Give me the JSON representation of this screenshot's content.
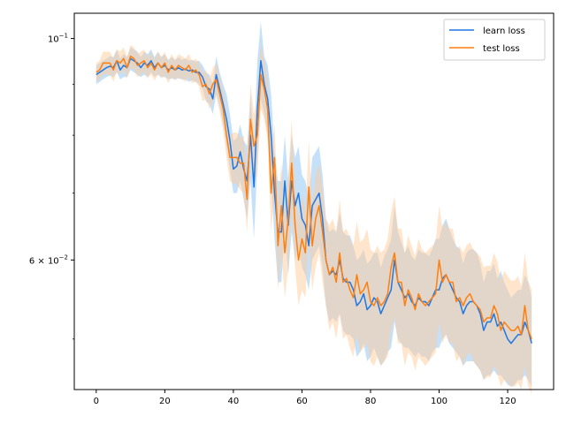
{
  "chart_data": {
    "type": "line",
    "title": "",
    "xlabel": "",
    "ylabel": "",
    "y_scale": "log",
    "xlim": [
      -6.4,
      133.4
    ],
    "ylim": [
      0.0445,
      0.106
    ],
    "grid": false,
    "legend_position": "upper right",
    "x_ticks": [
      0,
      20,
      40,
      60,
      80,
      100,
      120
    ],
    "x_tick_labels": [
      "0",
      "20",
      "40",
      "60",
      "80",
      "100",
      "120"
    ],
    "y_ticks": [
      {
        "value": 0.1,
        "base": "10",
        "exponent": "−1",
        "coefficient": ""
      },
      {
        "value": 0.06,
        "base": "10",
        "exponent": "−2",
        "coefficient": "6 × "
      }
    ],
    "series": [
      {
        "name": "learn loss",
        "color": "#1f77e4",
        "band_color": "#9fcdf7",
        "x_start": 0,
        "x_step": 1,
        "values": [
          0.092,
          0.0925,
          0.093,
          0.0935,
          0.0938,
          0.0935,
          0.095,
          0.093,
          0.094,
          0.0935,
          0.0955,
          0.095,
          0.0945,
          0.0935,
          0.0945,
          0.094,
          0.095,
          0.0935,
          0.0945,
          0.0935,
          0.094,
          0.093,
          0.0935,
          0.093,
          0.0935,
          0.093,
          0.0932,
          0.0928,
          0.093,
          0.0925,
          0.0925,
          0.0915,
          0.0895,
          0.089,
          0.087,
          0.092,
          0.089,
          0.086,
          0.083,
          0.079,
          0.074,
          0.0745,
          0.077,
          0.074,
          0.072,
          0.08,
          0.071,
          0.085,
          0.095,
          0.09,
          0.087,
          0.08,
          0.07,
          0.064,
          0.064,
          0.072,
          0.065,
          0.072,
          0.068,
          0.07,
          0.066,
          0.065,
          0.062,
          0.068,
          0.069,
          0.07,
          0.066,
          0.06,
          0.058,
          0.0585,
          0.058,
          0.06,
          0.0575,
          0.057,
          0.057,
          0.056,
          0.054,
          0.0545,
          0.0555,
          0.0535,
          0.054,
          0.055,
          0.0545,
          0.053,
          0.054,
          0.055,
          0.056,
          0.06,
          0.057,
          0.056,
          0.055,
          0.0555,
          0.0545,
          0.054,
          0.055,
          0.0545,
          0.0545,
          0.054,
          0.055,
          0.056,
          0.056,
          0.0575,
          0.058,
          0.057,
          0.056,
          0.055,
          0.0545,
          0.053,
          0.054,
          0.0545,
          0.0545,
          0.054,
          0.053,
          0.051,
          0.052,
          0.052,
          0.053,
          0.0515,
          0.052,
          0.051,
          0.05,
          0.0495,
          0.05,
          0.0505,
          0.0505,
          0.052,
          0.051,
          0.0495
        ],
        "band_lower": [
          0.09,
          0.0905,
          0.091,
          0.0915,
          0.0918,
          0.0915,
          0.0925,
          0.091,
          0.0915,
          0.0915,
          0.093,
          0.0925,
          0.092,
          0.0915,
          0.092,
          0.0915,
          0.0925,
          0.0915,
          0.092,
          0.0915,
          0.0915,
          0.091,
          0.0912,
          0.091,
          0.0912,
          0.091,
          0.091,
          0.0905,
          0.0908,
          0.0905,
          0.09,
          0.089,
          0.0865,
          0.086,
          0.084,
          0.088,
          0.0855,
          0.082,
          0.078,
          0.074,
          0.07,
          0.07,
          0.072,
          0.069,
          0.066,
          0.072,
          0.063,
          0.075,
          0.087,
          0.084,
          0.08,
          0.072,
          0.063,
          0.057,
          0.057,
          0.064,
          0.058,
          0.064,
          0.06,
          0.062,
          0.059,
          0.058,
          0.056,
          0.06,
          0.061,
          0.062,
          0.059,
          0.054,
          0.052,
          0.0525,
          0.052,
          0.053,
          0.051,
          0.0505,
          0.0505,
          0.05,
          0.048,
          0.0485,
          0.0495,
          0.0475,
          0.048,
          0.049,
          0.048,
          0.047,
          0.0475,
          0.0485,
          0.049,
          0.052,
          0.05,
          0.0495,
          0.049,
          0.049,
          0.0485,
          0.048,
          0.0485,
          0.048,
          0.048,
          0.0475,
          0.0485,
          0.049,
          0.049,
          0.05,
          0.0505,
          0.0495,
          0.049,
          0.0485,
          0.048,
          0.047,
          0.0475,
          0.0475,
          0.0475,
          0.047,
          0.0465,
          0.0455,
          0.046,
          0.046,
          0.0465,
          0.046,
          0.046,
          0.0455,
          0.045,
          0.0448,
          0.045,
          0.0455,
          0.0455,
          0.046,
          0.0455,
          0.0448
        ],
        "band_upper": [
          0.094,
          0.0945,
          0.095,
          0.0955,
          0.096,
          0.0958,
          0.0975,
          0.0955,
          0.0965,
          0.0958,
          0.098,
          0.0975,
          0.097,
          0.0958,
          0.097,
          0.0965,
          0.0975,
          0.0958,
          0.097,
          0.0958,
          0.0965,
          0.0952,
          0.0958,
          0.0952,
          0.0958,
          0.0952,
          0.0955,
          0.095,
          0.0952,
          0.0948,
          0.095,
          0.094,
          0.0925,
          0.092,
          0.09,
          0.096,
          0.0925,
          0.09,
          0.088,
          0.084,
          0.079,
          0.0795,
          0.082,
          0.079,
          0.078,
          0.088,
          0.079,
          0.095,
          0.104,
          0.096,
          0.094,
          0.088,
          0.077,
          0.072,
          0.072,
          0.08,
          0.072,
          0.08,
          0.076,
          0.078,
          0.073,
          0.072,
          0.069,
          0.076,
          0.077,
          0.078,
          0.073,
          0.066,
          0.064,
          0.0645,
          0.064,
          0.067,
          0.064,
          0.0635,
          0.0635,
          0.062,
          0.06,
          0.0605,
          0.0615,
          0.0595,
          0.06,
          0.061,
          0.061,
          0.059,
          0.0605,
          0.0615,
          0.063,
          0.068,
          0.064,
          0.0625,
          0.061,
          0.062,
          0.0605,
          0.06,
          0.0615,
          0.061,
          0.061,
          0.0605,
          0.0615,
          0.063,
          0.063,
          0.065,
          0.066,
          0.0645,
          0.063,
          0.062,
          0.0615,
          0.0595,
          0.061,
          0.0615,
          0.0615,
          0.061,
          0.0595,
          0.057,
          0.0585,
          0.0585,
          0.0595,
          0.0575,
          0.0585,
          0.057,
          0.056,
          0.055,
          0.0555,
          0.056,
          0.056,
          0.058,
          0.057,
          0.055
        ]
      },
      {
        "name": "test loss",
        "color": "#ff7f0e",
        "band_color": "#ffcc99",
        "x_start": 0,
        "x_step": 1,
        "values": [
          0.0925,
          0.093,
          0.0945,
          0.0945,
          0.0945,
          0.093,
          0.095,
          0.0945,
          0.0955,
          0.0935,
          0.096,
          0.0955,
          0.094,
          0.0945,
          0.095,
          0.0935,
          0.0945,
          0.093,
          0.0945,
          0.0935,
          0.0945,
          0.0925,
          0.094,
          0.093,
          0.094,
          0.0935,
          0.093,
          0.094,
          0.0925,
          0.093,
          0.092,
          0.0895,
          0.09,
          0.088,
          0.09,
          0.091,
          0.088,
          0.085,
          0.08,
          0.076,
          0.076,
          0.076,
          0.075,
          0.075,
          0.069,
          0.083,
          0.078,
          0.08,
          0.092,
          0.089,
          0.085,
          0.07,
          0.076,
          0.062,
          0.068,
          0.061,
          0.066,
          0.075,
          0.065,
          0.06,
          0.063,
          0.061,
          0.071,
          0.062,
          0.066,
          0.068,
          0.064,
          0.06,
          0.058,
          0.059,
          0.057,
          0.061,
          0.057,
          0.0575,
          0.056,
          0.055,
          0.058,
          0.0555,
          0.056,
          0.057,
          0.0545,
          0.054,
          0.055,
          0.054,
          0.0545,
          0.0555,
          0.059,
          0.061,
          0.057,
          0.057,
          0.054,
          0.056,
          0.055,
          0.0535,
          0.0555,
          0.0545,
          0.054,
          0.0545,
          0.055,
          0.0555,
          0.06,
          0.057,
          0.058,
          0.057,
          0.057,
          0.0545,
          0.055,
          0.054,
          0.055,
          0.0555,
          0.0545,
          0.054,
          0.0535,
          0.052,
          0.0525,
          0.0525,
          0.054,
          0.053,
          0.051,
          0.052,
          0.0515,
          0.051,
          0.051,
          0.0515,
          0.0505,
          0.054,
          0.051,
          0.05
        ],
        "band_lower": [
          0.0905,
          0.091,
          0.092,
          0.092,
          0.092,
          0.0905,
          0.0925,
          0.092,
          0.093,
          0.0912,
          0.0935,
          0.093,
          0.0915,
          0.092,
          0.0925,
          0.0912,
          0.092,
          0.0908,
          0.092,
          0.0912,
          0.092,
          0.0902,
          0.0915,
          0.0908,
          0.0915,
          0.091,
          0.0905,
          0.0915,
          0.0902,
          0.0905,
          0.0895,
          0.0865,
          0.087,
          0.085,
          0.0865,
          0.0875,
          0.0845,
          0.081,
          0.076,
          0.072,
          0.0715,
          0.0715,
          0.0705,
          0.07,
          0.064,
          0.076,
          0.072,
          0.073,
          0.085,
          0.083,
          0.079,
          0.064,
          0.07,
          0.056,
          0.061,
          0.055,
          0.059,
          0.067,
          0.059,
          0.054,
          0.056,
          0.055,
          0.063,
          0.056,
          0.059,
          0.061,
          0.057,
          0.054,
          0.051,
          0.052,
          0.05,
          0.053,
          0.05,
          0.0505,
          0.049,
          0.048,
          0.0505,
          0.0485,
          0.049,
          0.0495,
          0.0475,
          0.047,
          0.048,
          0.047,
          0.0475,
          0.048,
          0.051,
          0.0525,
          0.0495,
          0.0495,
          0.047,
          0.0485,
          0.048,
          0.0465,
          0.048,
          0.0475,
          0.047,
          0.0475,
          0.048,
          0.0485,
          0.052,
          0.0495,
          0.0505,
          0.0495,
          0.0495,
          0.0475,
          0.048,
          0.047,
          0.048,
          0.0485,
          0.0475,
          0.047,
          0.0465,
          0.0455,
          0.0458,
          0.0458,
          0.047,
          0.0462,
          0.0448,
          0.0455,
          0.0452,
          0.0448,
          0.0448,
          0.0452,
          0.0445,
          0.047,
          0.0448,
          0.044
        ],
        "band_upper": [
          0.0945,
          0.095,
          0.097,
          0.097,
          0.097,
          0.0955,
          0.0975,
          0.097,
          0.098,
          0.0958,
          0.0985,
          0.098,
          0.0965,
          0.097,
          0.0975,
          0.0958,
          0.097,
          0.0952,
          0.097,
          0.0958,
          0.097,
          0.0948,
          0.0965,
          0.0952,
          0.0965,
          0.096,
          0.0955,
          0.0965,
          0.0948,
          0.0955,
          0.0945,
          0.0925,
          0.093,
          0.091,
          0.0935,
          0.0945,
          0.0915,
          0.089,
          0.084,
          0.08,
          0.0805,
          0.0805,
          0.0795,
          0.08,
          0.074,
          0.09,
          0.084,
          0.087,
          0.099,
          0.095,
          0.091,
          0.076,
          0.082,
          0.068,
          0.075,
          0.067,
          0.073,
          0.083,
          0.071,
          0.066,
          0.07,
          0.067,
          0.079,
          0.068,
          0.073,
          0.075,
          0.071,
          0.066,
          0.065,
          0.066,
          0.064,
          0.069,
          0.064,
          0.0645,
          0.063,
          0.062,
          0.0655,
          0.0625,
          0.063,
          0.0645,
          0.0615,
          0.061,
          0.062,
          0.061,
          0.0615,
          0.063,
          0.067,
          0.0695,
          0.0645,
          0.0645,
          0.061,
          0.0635,
          0.062,
          0.0605,
          0.063,
          0.0615,
          0.061,
          0.0615,
          0.062,
          0.0625,
          0.068,
          0.0645,
          0.0655,
          0.0645,
          0.0645,
          0.0615,
          0.062,
          0.061,
          0.062,
          0.0625,
          0.0615,
          0.061,
          0.0605,
          0.059,
          0.0592,
          0.0592,
          0.061,
          0.0598,
          0.0572,
          0.0585,
          0.0578,
          0.0572,
          0.0572,
          0.0578,
          0.0565,
          0.061,
          0.0572,
          0.056
        ]
      }
    ]
  }
}
